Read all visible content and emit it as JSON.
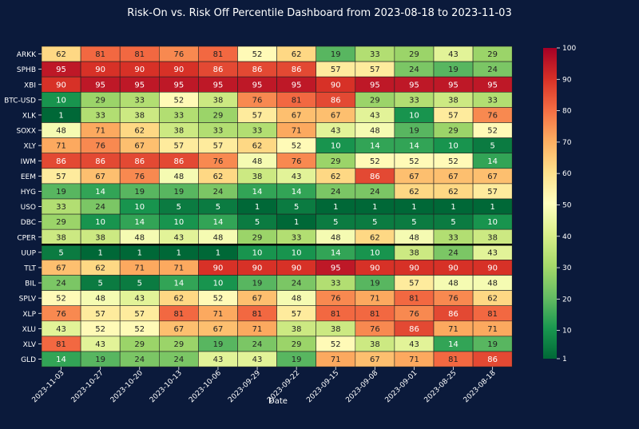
{
  "chart_data": {
    "type": "heatmap",
    "title": "Risk-On vs. Risk Off Percentile Dashboard from 2023-08-18 to 2023-11-03",
    "xlabel": "Date",
    "ylabel": "",
    "x": [
      "2023-11-03",
      "2023-10-27",
      "2023-10-20",
      "2023-10-13",
      "2023-10-06",
      "2023-09-29",
      "2023-09-22",
      "2023-09-15",
      "2023-09-08",
      "2023-09-01",
      "2023-08-25",
      "2023-08-18"
    ],
    "y": [
      "ARKK",
      "SPHB",
      "XBI",
      "BTC-USD",
      "XLK",
      "SOXX",
      "XLY",
      "IWM",
      "EEM",
      "HYG",
      "USO",
      "DBC",
      "CPER",
      "UUP",
      "TLT",
      "BIL",
      "SPLV",
      "XLP",
      "XLU",
      "XLV",
      "GLD"
    ],
    "values": [
      [
        62,
        81,
        81,
        76,
        81,
        52,
        62,
        19,
        33,
        29,
        43,
        29
      ],
      [
        95,
        90,
        90,
        90,
        86,
        86,
        86,
        57,
        57,
        24,
        19,
        24
      ],
      [
        90,
        95,
        95,
        95,
        95,
        95,
        95,
        90,
        95,
        95,
        95,
        95
      ],
      [
        10,
        29,
        33,
        52,
        38,
        76,
        81,
        86,
        29,
        33,
        38,
        33
      ],
      [
        1,
        33,
        38,
        33,
        29,
        57,
        67,
        67,
        43,
        10,
        57,
        76
      ],
      [
        48,
        71,
        62,
        38,
        33,
        33,
        71,
        43,
        48,
        19,
        29,
        52
      ],
      [
        71,
        76,
        67,
        57,
        57,
        62,
        52,
        10,
        14,
        14,
        10,
        5
      ],
      [
        86,
        86,
        86,
        86,
        76,
        48,
        76,
        29,
        52,
        52,
        52,
        14
      ],
      [
        57,
        67,
        76,
        48,
        62,
        38,
        43,
        62,
        86,
        67,
        67,
        67
      ],
      [
        19,
        14,
        19,
        19,
        24,
        14,
        14,
        24,
        24,
        62,
        62,
        57
      ],
      [
        33,
        24,
        10,
        5,
        5,
        1,
        5,
        1,
        1,
        1,
        1,
        1
      ],
      [
        29,
        10,
        14,
        10,
        14,
        5,
        1,
        5,
        5,
        5,
        5,
        10
      ],
      [
        38,
        38,
        48,
        43,
        48,
        29,
        33,
        48,
        62,
        48,
        33,
        38
      ],
      [
        5,
        1,
        1,
        1,
        1,
        10,
        10,
        14,
        10,
        38,
        24,
        43
      ],
      [
        67,
        62,
        71,
        71,
        90,
        90,
        90,
        95,
        90,
        90,
        90,
        90
      ],
      [
        24,
        5,
        5,
        14,
        10,
        19,
        24,
        33,
        19,
        57,
        48,
        48
      ],
      [
        52,
        48,
        43,
        62,
        52,
        67,
        48,
        76,
        71,
        81,
        76,
        62
      ],
      [
        76,
        57,
        57,
        81,
        71,
        81,
        57,
        81,
        81,
        76,
        86,
        81
      ],
      [
        43,
        52,
        52,
        67,
        67,
        71,
        38,
        38,
        76,
        86,
        71,
        71
      ],
      [
        81,
        43,
        29,
        29,
        19,
        24,
        29,
        52,
        38,
        43,
        14,
        19
      ],
      [
        14,
        19,
        24,
        24,
        43,
        43,
        19,
        71,
        67,
        71,
        81,
        86
      ]
    ],
    "colorbar": {
      "min": 1,
      "max": 100,
      "ticks": [
        1,
        10,
        20,
        30,
        40,
        50,
        60,
        70,
        80,
        90,
        100
      ]
    },
    "colormap": "RdYlGn_r",
    "separators_after_rows": [
      "CPER"
    ]
  },
  "colors": {
    "background": "#0b1a3b",
    "text": "#ffffff",
    "cell_border": "#222222",
    "separator": "#000000"
  }
}
